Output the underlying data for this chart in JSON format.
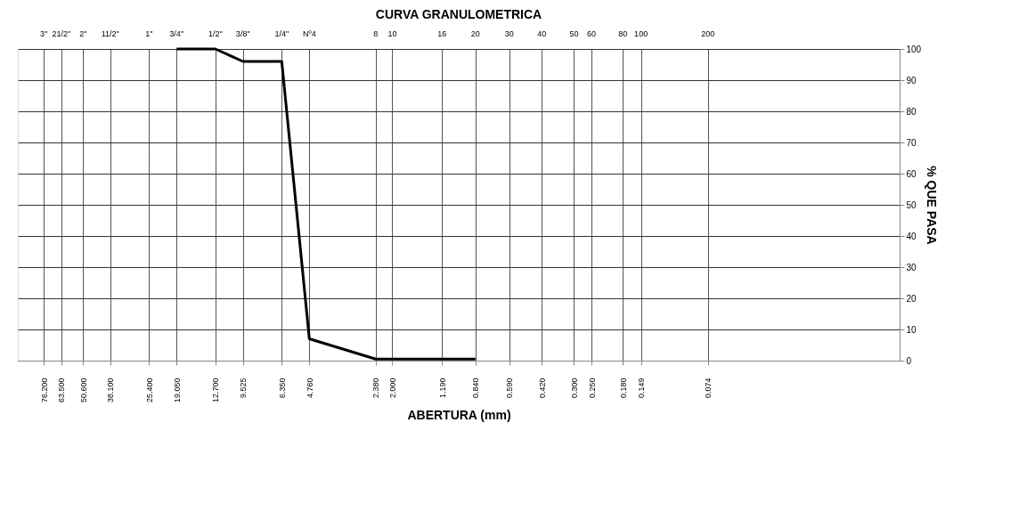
{
  "chart_data": {
    "type": "line",
    "title": "CURVA GRANULOMETRICA",
    "xlabel": "ABERTURA (mm)",
    "ylabel": "% QUE PASA",
    "x": [
      19.05,
      12.7,
      9.525,
      6.35,
      4.76,
      2.38,
      1.19,
      0.84
    ],
    "series": [
      {
        "color": "#000000",
        "values": [
          100,
          100,
          96,
          96,
          7,
          0.5,
          0.5,
          0.5
        ]
      }
    ],
    "log": "x",
    "grid": true,
    "xlim": [
      100,
      0.01
    ],
    "ylim": [
      0,
      100
    ],
    "yticks": [
      0,
      10,
      20,
      30,
      40,
      50,
      60,
      70,
      80,
      90,
      100
    ],
    "xticks": [
      {
        "value": 76.2,
        "label": "76.200"
      },
      {
        "value": 63.5,
        "label": "63.500"
      },
      {
        "value": 50.6,
        "label": "50.600"
      },
      {
        "value": 38.1,
        "label": "38.100"
      },
      {
        "value": 25.4,
        "label": "25.400"
      },
      {
        "value": 19.05,
        "label": "19.050"
      },
      {
        "value": 12.7,
        "label": "12.700"
      },
      {
        "value": 9.525,
        "label": "9.525"
      },
      {
        "value": 6.35,
        "label": "6.350"
      },
      {
        "value": 4.76,
        "label": "4.760"
      },
      {
        "value": 2.38,
        "label": "2.380"
      },
      {
        "value": 2.0,
        "label": "2.000"
      },
      {
        "value": 1.19,
        "label": "1.190"
      },
      {
        "value": 0.84,
        "label": "0.840"
      },
      {
        "value": 0.59,
        "label": "0.590"
      },
      {
        "value": 0.42,
        "label": "0.420"
      },
      {
        "value": 0.3,
        "label": "0.300"
      },
      {
        "value": 0.25,
        "label": "0.250"
      },
      {
        "value": 0.18,
        "label": "0.180"
      },
      {
        "value": 0.149,
        "label": "0.149"
      },
      {
        "value": 0.074,
        "label": "0.074"
      }
    ],
    "annotations": [
      "3\"",
      "21/2\"",
      "2\"",
      "11/2\"",
      "1\"",
      "3/4\"",
      "1/2\"",
      "3/8\"",
      "1/4\"",
      "Nº4",
      "8",
      "10",
      "16",
      "20",
      "30",
      "40",
      "50",
      "60",
      "80",
      "100",
      "200"
    ]
  }
}
